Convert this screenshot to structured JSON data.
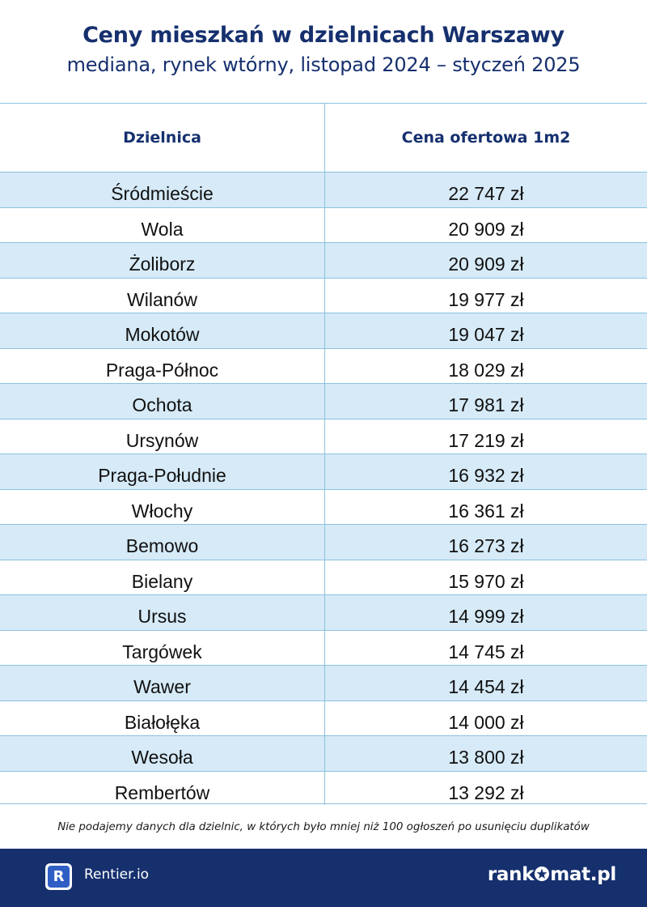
{
  "header": {
    "title": "Ceny mieszkań w dzielnicach Warszawy",
    "subtitle": "mediana, rynek wtórny, listopad 2024 – styczeń 2025"
  },
  "table": {
    "columns": [
      "Dzielnica",
      "Cena ofertowa 1m2"
    ],
    "rows": [
      {
        "district": "Śródmieście",
        "price": "22 747 zł"
      },
      {
        "district": "Wola",
        "price": "20 909 zł"
      },
      {
        "district": "Żoliborz",
        "price": "20 909 zł"
      },
      {
        "district": "Wilanów",
        "price": "19 977 zł"
      },
      {
        "district": "Mokotów",
        "price": "19 047 zł"
      },
      {
        "district": "Praga-Północ",
        "price": "18 029 zł"
      },
      {
        "district": "Ochota",
        "price": "17 981 zł"
      },
      {
        "district": "Ursynów",
        "price": "17 219 zł"
      },
      {
        "district": "Praga-Południe",
        "price": "16 932 zł"
      },
      {
        "district": "Włochy",
        "price": "16 361 zł"
      },
      {
        "district": "Bemowo",
        "price": "16 273 zł"
      },
      {
        "district": "Bielany",
        "price": "15 970 zł"
      },
      {
        "district": "Ursus",
        "price": "14 999 zł"
      },
      {
        "district": "Targówek",
        "price": "14 745 zł"
      },
      {
        "district": "Wawer",
        "price": "14 454 zł"
      },
      {
        "district": "Białołęka",
        "price": "14 000 zł"
      },
      {
        "district": "Wesoła",
        "price": "13 800 zł"
      },
      {
        "district": "Rembertów",
        "price": "13 292 zł"
      }
    ]
  },
  "note": "Nie podajemy danych dla dzielnic, w których było mniej niż 100 ogłoszeń po usunięciu duplikatów",
  "footer": {
    "rentier_logo_letter": "R",
    "rentier_name": "Rentier.io",
    "rankomat_part1": "rank",
    "rankomat_part2": "mat.pl",
    "rankomat_icon": "star-o-icon"
  },
  "colors": {
    "navy": "#16306e",
    "row_shade": "#d6eaf7",
    "grid": "#8cc2e0",
    "rentier_blue": "#2f5fc4"
  }
}
